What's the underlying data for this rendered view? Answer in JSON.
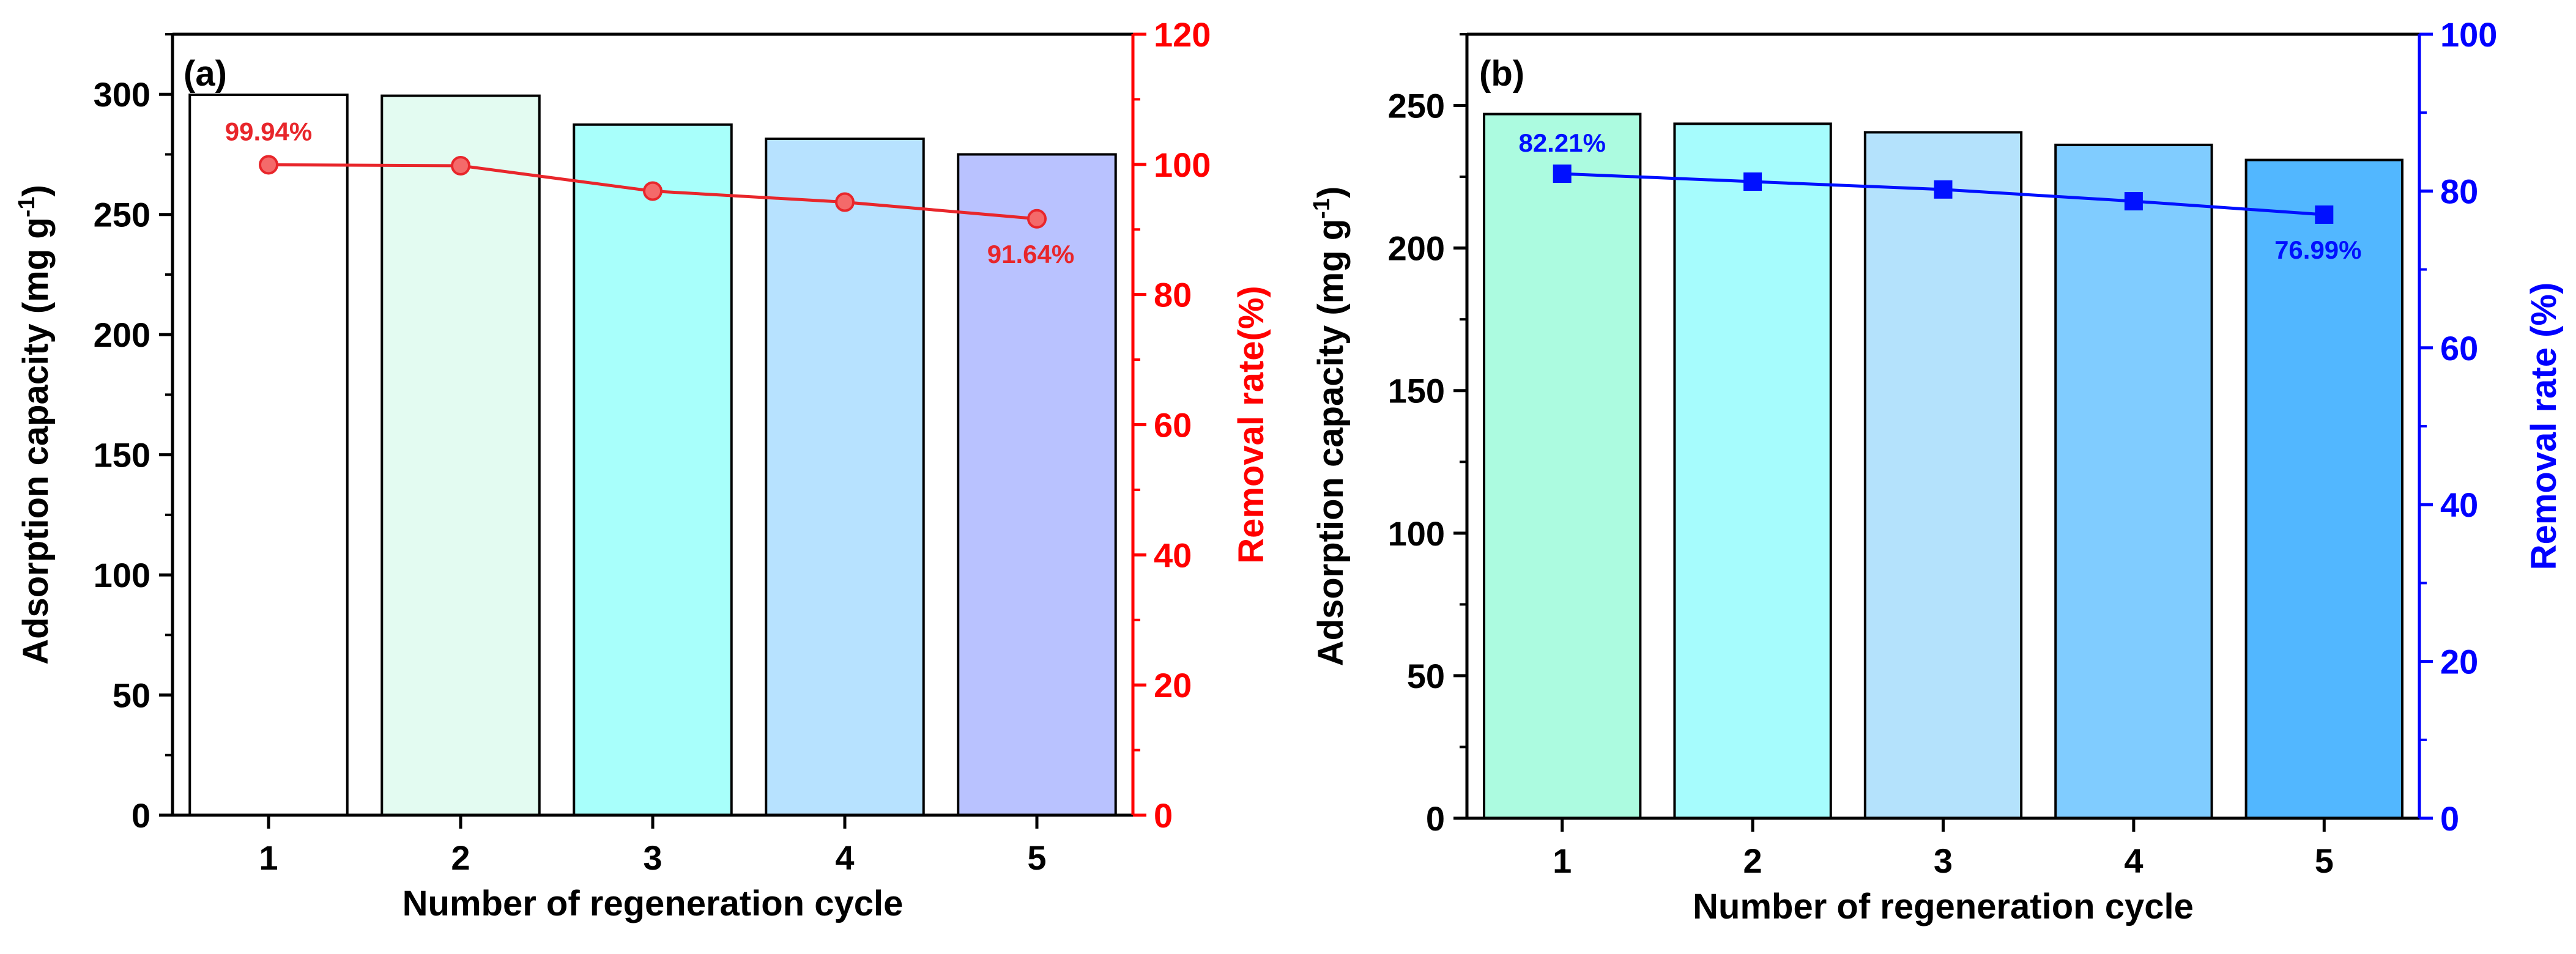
{
  "chart_data": [
    {
      "panel": "(a)",
      "type": "bar+line",
      "categories": [
        "1",
        "2",
        "3",
        "4",
        "5"
      ],
      "xlabel": "Number of regeneration cycle",
      "ylabel_left": "Adsorption capacity (mg g",
      "ylabel_left_sup": "-1",
      "ylabel_left_suffix": ")",
      "ylabel_right": "Removal rate(%)",
      "ylim_left": [
        0,
        325
      ],
      "yticks_left": [
        0,
        50,
        100,
        150,
        200,
        250,
        300
      ],
      "ylim_right": [
        0,
        120
      ],
      "yticks_right": [
        0,
        20,
        40,
        60,
        80,
        100,
        120
      ],
      "right_axis_color": "#ff0000",
      "bar_values": [
        299.8,
        299.4,
        287.4,
        281.5,
        275.0
      ],
      "bar_colors": [
        "#ffffff",
        "#e3fbf1",
        "#a8fffb",
        "#b7e2ff",
        "#b9c2ff"
      ],
      "line_values": [
        99.94,
        99.8,
        95.9,
        94.2,
        91.64
      ],
      "line_color": "#e8262b",
      "marker": "circle",
      "annotations": [
        {
          "text": "99.94%",
          "index": 0,
          "placement": "above-left"
        },
        {
          "text": "91.64%",
          "index": 4,
          "placement": "below"
        }
      ]
    },
    {
      "panel": "(b)",
      "type": "bar+line",
      "categories": [
        "1",
        "2",
        "3",
        "4",
        "5"
      ],
      "xlabel": "Number of regeneration cycle",
      "ylabel_left": "Adsorption capacity (mg g",
      "ylabel_left_sup": "-1",
      "ylabel_left_suffix": ")",
      "ylabel_right": "Removal rate (%)",
      "ylim_left": [
        0,
        275
      ],
      "yticks_left": [
        0,
        50,
        100,
        150,
        200,
        250
      ],
      "ylim_right": [
        0,
        100
      ],
      "yticks_right": [
        0,
        20,
        40,
        60,
        80,
        100
      ],
      "right_axis_color": "#0000ff",
      "bar_values": [
        247.0,
        243.6,
        240.6,
        236.2,
        230.9
      ],
      "bar_colors": [
        "#acfbe0",
        "#a6fcfd",
        "#b4e2fc",
        "#80ccff",
        "#52b7ff"
      ],
      "line_values": [
        82.21,
        81.2,
        80.2,
        78.7,
        76.99
      ],
      "line_color": "#0010ff",
      "marker": "square",
      "annotations": [
        {
          "text": "82.21%",
          "index": 0,
          "placement": "above"
        },
        {
          "text": "76.99%",
          "index": 4,
          "placement": "below"
        }
      ]
    }
  ]
}
